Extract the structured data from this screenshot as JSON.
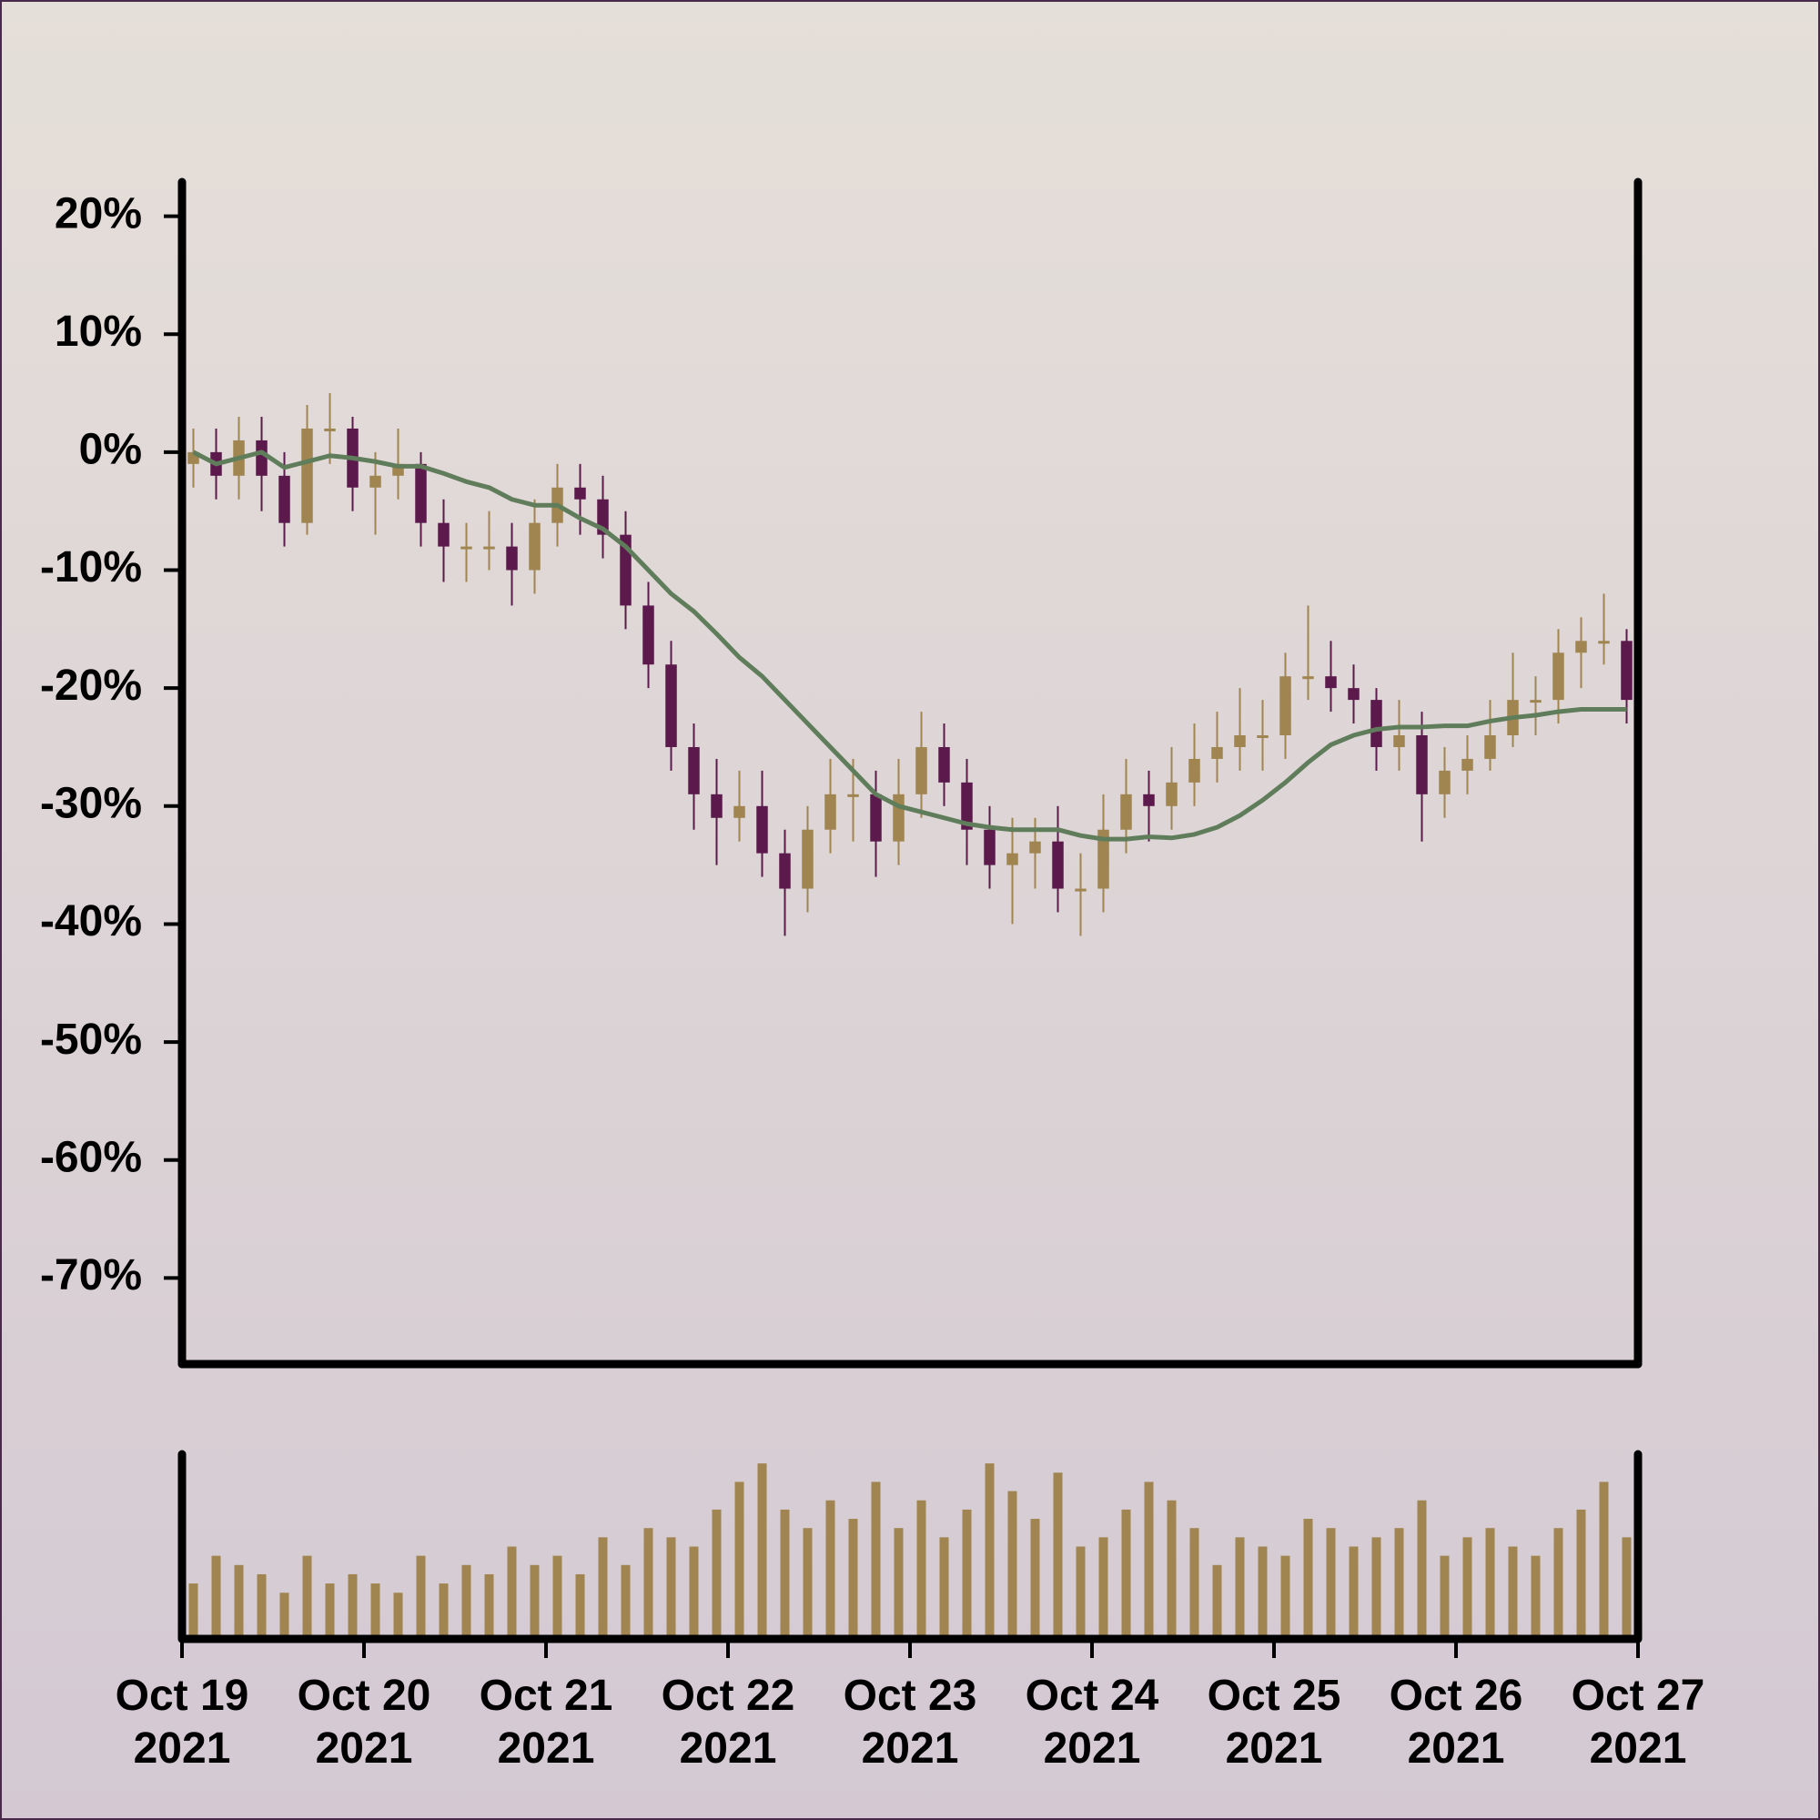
{
  "chart_data": {
    "type": "candlestick",
    "up_color": "#a08550",
    "down_color": "#5c1a4c",
    "open": [
      -1,
      0,
      -2,
      1,
      -2,
      -6,
      2,
      2,
      -3,
      -2,
      -1,
      -6,
      -8,
      -8,
      -8,
      -10,
      -6,
      -3,
      -4,
      -7,
      -13,
      -18,
      -25,
      -29,
      -31,
      -30,
      -34,
      -37,
      -32,
      -29,
      -29,
      -33,
      -29,
      -25,
      -28,
      -32,
      -35,
      -34,
      -33,
      -37,
      -37,
      -32,
      -29,
      -30,
      -28,
      -26,
      -25,
      -24,
      -24,
      -19,
      -19,
      -20,
      -21,
      -25,
      -24,
      -29,
      -27,
      -26,
      -24,
      -21,
      -21,
      -17,
      -16,
      -16
    ],
    "high": [
      2,
      2,
      3,
      3,
      0,
      4,
      5,
      3,
      0,
      2,
      0,
      -4,
      -6,
      -5,
      -6,
      -4,
      -1,
      -1,
      -2,
      -5,
      -11,
      -16,
      -23,
      -26,
      -27,
      -27,
      -32,
      -30,
      -26,
      -26,
      -27,
      -26,
      -22,
      -23,
      -26,
      -30,
      -31,
      -31,
      -30,
      -34,
      -29,
      -26,
      -27,
      -25,
      -23,
      -22,
      -20,
      -21,
      -17,
      -13,
      -16,
      -18,
      -20,
      -21,
      -22,
      -25,
      -24,
      -21,
      -17,
      -19,
      -15,
      -14,
      -12,
      -15
    ],
    "low": [
      -3,
      -4,
      -4,
      -5,
      -8,
      -7,
      -1,
      -5,
      -7,
      -4,
      -8,
      -11,
      -11,
      -10,
      -13,
      -12,
      -8,
      -7,
      -9,
      -15,
      -20,
      -27,
      -32,
      -35,
      -33,
      -36,
      -41,
      -39,
      -34,
      -33,
      -36,
      -35,
      -31,
      -30,
      -35,
      -37,
      -40,
      -37,
      -39,
      -41,
      -39,
      -34,
      -33,
      -32,
      -30,
      -28,
      -27,
      -27,
      -26,
      -21,
      -22,
      -23,
      -27,
      -27,
      -33,
      -31,
      -29,
      -27,
      -25,
      -24,
      -23,
      -20,
      -18,
      -23
    ],
    "close": [
      0,
      -2,
      1,
      -2,
      -6,
      2,
      2,
      -3,
      -2,
      -1,
      -6,
      -8,
      -8,
      -8,
      -10,
      -6,
      -3,
      -4,
      -7,
      -13,
      -18,
      -25,
      -29,
      -31,
      -30,
      -34,
      -37,
      -32,
      -29,
      -29,
      -33,
      -29,
      -25,
      -28,
      -32,
      -35,
      -34,
      -33,
      -37,
      -37,
      -32,
      -29,
      -30,
      -28,
      -26,
      -25,
      -24,
      -24,
      -19,
      -19,
      -20,
      -21,
      -25,
      -24,
      -29,
      -27,
      -26,
      -24,
      -21,
      -21,
      -17,
      -16,
      -16,
      -21
    ],
    "moving_average": {
      "color": "#5f7d5a",
      "values": [
        0,
        -1,
        -0.5,
        0,
        -1.3,
        -0.8,
        -0.3,
        -0.5,
        -0.8,
        -1.2,
        -1.2,
        -1.8,
        -2.5,
        -3,
        -4,
        -4.5,
        -4.5,
        -5.6,
        -6.5,
        -8,
        -10,
        -12,
        -13.5,
        -15.4,
        -17.4,
        -19,
        -21,
        -23,
        -25,
        -27,
        -29,
        -30,
        -30.5,
        -31,
        -31.5,
        -31.8,
        -32,
        -32,
        -32,
        -32.5,
        -32.8,
        -32.8,
        -32.6,
        -32.7,
        -32.4,
        -31.8,
        -30.8,
        -29.5,
        -28,
        -26.3,
        -24.8,
        -24,
        -23.5,
        -23.3,
        -23.3,
        -23.2,
        -23.2,
        -22.8,
        -22.5,
        -22.3,
        -22,
        -21.8,
        -21.8,
        -21.8
      ]
    },
    "volume": {
      "color": "#a08550",
      "ylim": [
        0,
        100
      ],
      "values": [
        30,
        45,
        40,
        35,
        25,
        45,
        30,
        35,
        30,
        25,
        45,
        30,
        40,
        35,
        50,
        40,
        45,
        35,
        55,
        40,
        60,
        55,
        50,
        70,
        85,
        95,
        70,
        60,
        75,
        65,
        85,
        60,
        75,
        55,
        70,
        95,
        80,
        65,
        90,
        50,
        55,
        70,
        85,
        75,
        60,
        40,
        55,
        50,
        45,
        65,
        60,
        50,
        55,
        60,
        75,
        45,
        55,
        60,
        50,
        45,
        60,
        70,
        85,
        55
      ]
    },
    "xlim": [
      0,
      64
    ],
    "xticks": [
      {
        "value": 0,
        "label": "Oct 19\n2021"
      },
      {
        "value": 8,
        "label": "Oct 20\n2021"
      },
      {
        "value": 16,
        "label": "Oct 21\n2021"
      },
      {
        "value": 24,
        "label": "Oct 22\n2021"
      },
      {
        "value": 32,
        "label": "Oct 23\n2021"
      },
      {
        "value": 40,
        "label": "Oct 24\n2021"
      },
      {
        "value": 48,
        "label": "Oct 25\n2021"
      },
      {
        "value": 56,
        "label": "Oct 26\n2021"
      },
      {
        "value": 64,
        "label": "Oct 27\n2021"
      }
    ],
    "ylim": [
      -77.3,
      22.9
    ],
    "yticks": [
      {
        "value": 20,
        "label": "20%"
      },
      {
        "value": 10,
        "label": "10%"
      },
      {
        "value": 0,
        "label": "0%"
      },
      {
        "value": -10,
        "label": "-10%"
      },
      {
        "value": -20,
        "label": "-20%"
      },
      {
        "value": -30,
        "label": "-30%"
      },
      {
        "value": -40,
        "label": "-40%"
      },
      {
        "value": -50,
        "label": "-50%"
      },
      {
        "value": -60,
        "label": "-60%"
      },
      {
        "value": -70,
        "label": "-70%"
      }
    ]
  }
}
